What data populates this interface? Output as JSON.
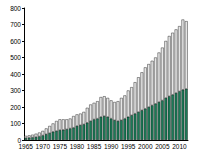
{
  "chart_data": {
    "type": "bar",
    "stacked": true,
    "grid": false,
    "categories": [
      "1965",
      null,
      null,
      null,
      null,
      "1970",
      null,
      null,
      null,
      null,
      "1975",
      null,
      null,
      null,
      null,
      "1980",
      null,
      null,
      null,
      null,
      "1985",
      null,
      null,
      null,
      null,
      "1990",
      null,
      null,
      null,
      null,
      "1995",
      null,
      null,
      null,
      null,
      "2000",
      null,
      null,
      null,
      null,
      "2005",
      null,
      null,
      null,
      null,
      "2010",
      null,
      null
    ],
    "series": [
      {
        "color": "#1b7a57",
        "values": [
          12,
          14,
          16,
          18,
          22,
          28,
          35,
          42,
          50,
          55,
          60,
          62,
          65,
          70,
          75,
          85,
          90,
          95,
          105,
          115,
          125,
          130,
          140,
          145,
          140,
          130,
          120,
          115,
          120,
          130,
          140,
          150,
          160,
          170,
          180,
          190,
          200,
          210,
          220,
          230,
          240,
          255,
          265,
          275,
          285,
          295,
          305,
          310
        ]
      },
      {
        "color": "#e6e6e6",
        "values": [
          13,
          14,
          16,
          20,
          23,
          27,
          35,
          43,
          50,
          60,
          65,
          63,
          60,
          60,
          70,
          70,
          70,
          75,
          90,
          100,
          100,
          105,
          120,
          120,
          115,
          110,
          110,
          120,
          135,
          140,
          160,
          170,
          190,
          210,
          230,
          250,
          260,
          270,
          280,
          300,
          320,
          345,
          365,
          375,
          385,
          395,
          425,
          410
        ]
      }
    ],
    "ylim": [
      0,
      800
    ],
    "yticks": [
      0,
      100,
      200,
      300,
      400,
      500,
      600,
      700,
      800
    ]
  }
}
